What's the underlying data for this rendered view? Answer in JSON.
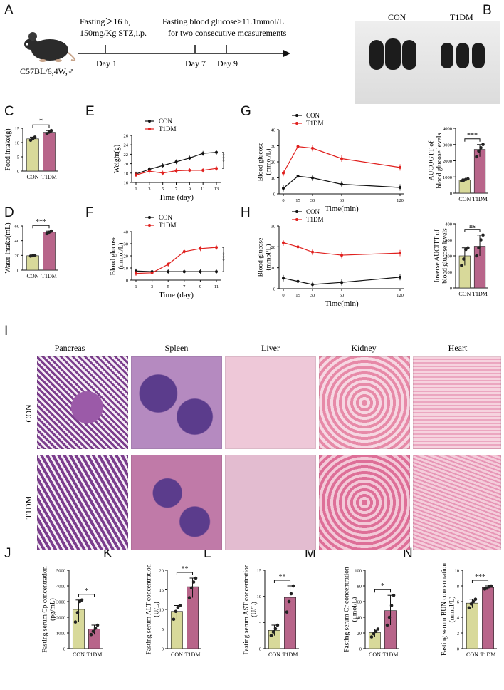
{
  "colors": {
    "con": "#111111",
    "t1dm": "#e0201e",
    "con_bar": "#d8d99a",
    "t1dm_bar": "#b8658a"
  },
  "panel_letters": {
    "A": "A",
    "B": "B",
    "C": "C",
    "D": "D",
    "E": "E",
    "F": "F",
    "G": "G",
    "H": "H",
    "I": "I",
    "J": "J",
    "K": "K",
    "L": "L",
    "M": "M",
    "N": "N"
  },
  "timeline": {
    "fasting_note_1": "Fasting＞16 h,",
    "fasting_note_2": "150mg/Kg STZ,i.p.",
    "glucose_note_1": "Fasting blood glucose≥11.1mmol/L",
    "glucose_note_2": "for two consecutive mcasurements",
    "mouse_label": "C57BL/6,4W,♂",
    "day1": "Day 1",
    "day7": "Day 7",
    "day9": "Day 9"
  },
  "photo_labels": {
    "con": "CON",
    "t1dm": "T1DM"
  },
  "histology": {
    "columns": [
      "Pancreas",
      "Spleen",
      "Liver",
      "Kidney",
      "Heart"
    ],
    "rows": [
      "CON",
      "T1DM"
    ]
  },
  "chart_data": [
    {
      "panel": "C",
      "type": "bar",
      "categories": [
        "CON",
        "T1DM"
      ],
      "values": [
        11.3,
        13.6
      ],
      "ylim": [
        0,
        15
      ],
      "yticks": [
        0,
        5,
        10,
        15
      ],
      "ylabel": "Food intake(g)",
      "significance": "*",
      "points": [
        [
          10.8,
          11.3,
          11.9
        ],
        [
          13.1,
          13.7,
          14.2
        ]
      ]
    },
    {
      "panel": "D",
      "type": "bar",
      "categories": [
        "CON",
        "T1DM"
      ],
      "values": [
        19.5,
        51.5
      ],
      "ylim": [
        0,
        60
      ],
      "yticks": [
        0,
        20,
        40,
        60
      ],
      "ylabel": "Water intake(mL)",
      "significance": "***",
      "points": [
        [
          19.0,
          19.5,
          19.8
        ],
        [
          49.5,
          51.5,
          53.0
        ]
      ]
    },
    {
      "panel": "E",
      "type": "line",
      "x": [
        1,
        3,
        5,
        7,
        9,
        11,
        13
      ],
      "xlabel": "Time  (day)",
      "ylabel": "Weight(g)",
      "ylim": [
        16,
        26
      ],
      "yticks": [
        16,
        18,
        20,
        22,
        24,
        26
      ],
      "significance": "***",
      "series": [
        {
          "name": "CON",
          "values": [
            17.8,
            18.8,
            19.6,
            20.4,
            21.2,
            22.2,
            22.4
          ]
        },
        {
          "name": "T1DM",
          "values": [
            17.6,
            18.4,
            18.0,
            18.5,
            18.6,
            18.6,
            19.0
          ]
        }
      ]
    },
    {
      "panel": "F",
      "type": "line",
      "x": [
        1,
        3,
        5,
        7,
        9,
        11
      ],
      "xlabel": "Time  (day)",
      "ylabel": "Blood glucose\n(mmol/L)",
      "ylim": [
        0,
        40
      ],
      "yticks": [
        0,
        10,
        20,
        30,
        40
      ],
      "significance": "***",
      "series": [
        {
          "name": "CON",
          "values": [
            7.5,
            7,
            7,
            7,
            7,
            7
          ]
        },
        {
          "name": "T1DM",
          "values": [
            5.5,
            6,
            13,
            23.5,
            26,
            27
          ]
        }
      ]
    },
    {
      "panel": "G",
      "type": "line",
      "x": [
        0,
        15,
        30,
        60,
        120
      ],
      "xlabel": "Time(min)",
      "ylabel": "Blood glucose\n(mmol/L)",
      "ylim": [
        0,
        40
      ],
      "yticks": [
        0,
        10,
        20,
        30,
        40
      ],
      "series": [
        {
          "name": "CON",
          "values": [
            3.5,
            11,
            10,
            6,
            4
          ]
        },
        {
          "name": "T1DM",
          "values": [
            13,
            29.5,
            28.5,
            22,
            16.5
          ]
        }
      ]
    },
    {
      "panel": "G-right",
      "type": "bar",
      "categories": [
        "CON",
        "T1DM"
      ],
      "values": [
        820,
        2700
      ],
      "ylim": [
        0,
        4000
      ],
      "yticks": [
        0,
        1000,
        2000,
        3000,
        4000
      ],
      "ylabel": "AUCOGTT of\nblood glucose levels",
      "significance": "***",
      "points": [
        [
          760,
          800,
          850,
          880
        ],
        [
          2250,
          2600,
          2800,
          3000
        ]
      ]
    },
    {
      "panel": "H",
      "type": "line",
      "x": [
        0,
        15,
        30,
        60,
        120
      ],
      "xlabel": "Time(min)",
      "ylabel": "Blood glucose\n(mmol/L)",
      "ylim": [
        0,
        30
      ],
      "yticks": [
        0,
        10,
        20,
        30
      ],
      "series": [
        {
          "name": "CON",
          "values": [
            5,
            3.5,
            2,
            3,
            5.5
          ]
        },
        {
          "name": "T1DM",
          "values": [
            22,
            20,
            17.5,
            16,
            17
          ]
        }
      ]
    },
    {
      "panel": "H-right",
      "type": "bar",
      "categories": [
        "CON",
        "T1DM"
      ],
      "values": [
        200,
        260
      ],
      "ylim": [
        0,
        400
      ],
      "yticks": [
        0,
        100,
        200,
        300,
        400
      ],
      "ylabel": "Inverse AUCITT of\nblood glucose levels",
      "significance": "ns",
      "points": [
        [
          140,
          180,
          240,
          250
        ],
        [
          200,
          250,
          300,
          330
        ]
      ]
    },
    {
      "panel": "J",
      "type": "bar",
      "categories": [
        "CON",
        "T1DM"
      ],
      "values": [
        2500,
        1250
      ],
      "ylim": [
        0,
        5000
      ],
      "yticks": [
        0,
        1000,
        2000,
        3000,
        4000,
        5000
      ],
      "ylabel": "Fasting serum Cp concentration\n(pg/mL)",
      "significance": "*",
      "points": [
        [
          1700,
          2300,
          3000,
          3100
        ],
        [
          900,
          1100,
          1300,
          1500
        ]
      ]
    },
    {
      "panel": "K",
      "type": "bar",
      "categories": [
        "CON",
        "T1DM"
      ],
      "values": [
        9.5,
        15.8
      ],
      "ylim": [
        0,
        20
      ],
      "yticks": [
        0,
        5,
        10,
        15,
        20
      ],
      "ylabel": "Fasting serum ALT concentration\n(U/L)",
      "significance": "**",
      "points": [
        [
          7.5,
          9.5,
          10.5,
          11
        ],
        [
          13,
          15.5,
          17,
          18
        ]
      ]
    },
    {
      "panel": "L",
      "type": "bar",
      "categories": [
        "CON",
        "T1DM"
      ],
      "values": [
        3.5,
        9.8
      ],
      "ylim": [
        0,
        15
      ],
      "yticks": [
        0,
        5,
        10,
        15
      ],
      "ylabel": "Fasting serum AST concentration\n(U/L)",
      "significance": "**",
      "points": [
        [
          2.5,
          3.2,
          3.8,
          4.5
        ],
        [
          7,
          9,
          10.5,
          12
        ]
      ]
    },
    {
      "panel": "M",
      "type": "bar",
      "categories": [
        "CON",
        "T1DM"
      ],
      "values": [
        20.5,
        48.5
      ],
      "ylim": [
        0,
        100
      ],
      "yticks": [
        0,
        20,
        40,
        60,
        80,
        100
      ],
      "ylabel": "Fasting serum Cr concentration\n(μmol/L)",
      "significance": "*",
      "points": [
        [
          15,
          19,
          22,
          25
        ],
        [
          30,
          40,
          55,
          68
        ]
      ]
    },
    {
      "panel": "N",
      "type": "bar",
      "categories": [
        "CON",
        "T1DM"
      ],
      "values": [
        5.8,
        7.8
      ],
      "ylim": [
        0,
        10
      ],
      "yticks": [
        0,
        2,
        4,
        6,
        8,
        10
      ],
      "ylabel": "Fasting serum BUN concentration\n(mmol/L)",
      "significance": "***",
      "points": [
        [
          5.2,
          5.7,
          6.0,
          6.3
        ],
        [
          7.6,
          7.7,
          7.9,
          8.0
        ]
      ]
    }
  ]
}
